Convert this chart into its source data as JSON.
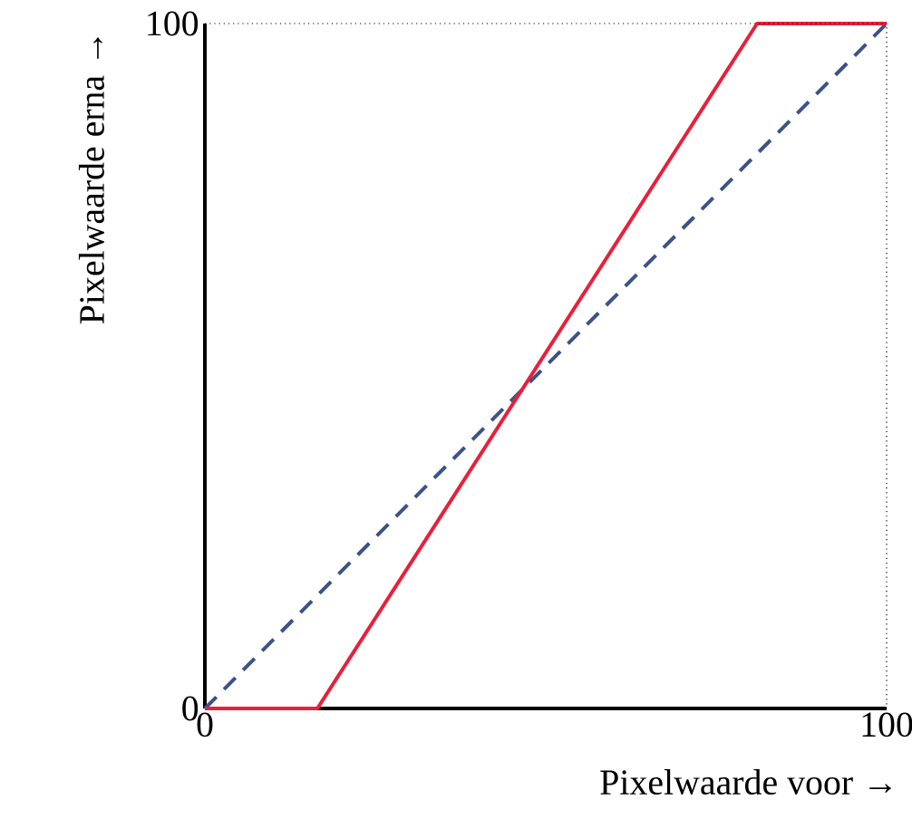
{
  "chart_data": {
    "type": "line",
    "xlabel": "Pixelwaarde voor →",
    "ylabel": "Pixelwaarde erna →",
    "xlim": [
      0,
      100
    ],
    "ylim": [
      0,
      100
    ],
    "xticks": [
      0,
      100
    ],
    "yticks": [
      0,
      100
    ],
    "series": [
      {
        "x": [
          0,
          100
        ],
        "values": [
          0,
          100
        ],
        "color": "#3c5288",
        "line_style": "dashed"
      },
      {
        "x": [
          0,
          16.5,
          81,
          100
        ],
        "values": [
          0,
          0,
          100,
          100
        ],
        "color": "#e8203a",
        "line_style": "solid"
      }
    ],
    "grid": false,
    "marker": "none"
  }
}
